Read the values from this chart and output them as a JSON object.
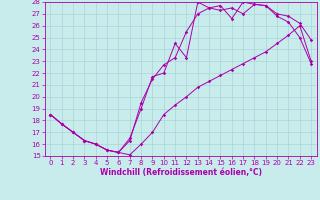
{
  "xlabel": "Windchill (Refroidissement éolien,°C)",
  "bg_color": "#c8ecec",
  "grid_color": "#aad4d4",
  "line_color": "#aa00aa",
  "marker": "D",
  "markersize": 1.8,
  "linewidth": 0.7,
  "xlim": [
    -0.5,
    23.5
  ],
  "ylim": [
    15,
    28
  ],
  "xticks": [
    0,
    1,
    2,
    3,
    4,
    5,
    6,
    7,
    8,
    9,
    10,
    11,
    12,
    13,
    14,
    15,
    16,
    17,
    18,
    19,
    20,
    21,
    22,
    23
  ],
  "yticks": [
    15,
    16,
    17,
    18,
    19,
    20,
    21,
    22,
    23,
    24,
    25,
    26,
    27,
    28
  ],
  "tick_fontsize": 5.0,
  "xlabel_fontsize": 5.5,
  "line1_x": [
    0,
    1,
    2,
    3,
    4,
    5,
    6,
    7,
    8,
    9,
    10,
    11,
    12,
    13,
    14,
    15,
    16,
    17,
    18,
    19,
    20,
    21,
    22,
    23
  ],
  "line1_y": [
    18.5,
    17.7,
    17.0,
    16.3,
    16.0,
    15.5,
    15.3,
    15.1,
    16.0,
    17.0,
    18.5,
    19.3,
    20.0,
    20.8,
    21.3,
    21.8,
    22.3,
    22.8,
    23.3,
    23.8,
    24.5,
    25.2,
    26.0,
    23.0
  ],
  "line2_x": [
    0,
    1,
    2,
    3,
    4,
    5,
    6,
    7,
    8,
    9,
    10,
    11,
    12,
    13,
    14,
    15,
    16,
    17,
    18,
    19,
    20,
    21,
    22,
    23
  ],
  "line2_y": [
    18.5,
    17.7,
    17.0,
    16.3,
    16.0,
    15.5,
    15.3,
    16.3,
    19.5,
    21.5,
    22.7,
    23.3,
    25.5,
    27.0,
    27.5,
    27.3,
    27.5,
    27.0,
    27.8,
    27.7,
    26.8,
    26.3,
    25.0,
    22.8
  ],
  "line3_x": [
    0,
    1,
    2,
    3,
    4,
    5,
    6,
    7,
    8,
    9,
    10,
    11,
    12,
    13,
    14,
    15,
    16,
    17,
    18,
    19,
    20,
    21,
    22,
    23
  ],
  "line3_y": [
    18.5,
    17.7,
    17.0,
    16.3,
    16.0,
    15.5,
    15.3,
    16.5,
    19.0,
    21.7,
    22.0,
    24.5,
    23.3,
    28.0,
    27.5,
    27.7,
    26.6,
    28.0,
    27.8,
    27.7,
    27.0,
    26.8,
    26.2,
    24.8
  ]
}
